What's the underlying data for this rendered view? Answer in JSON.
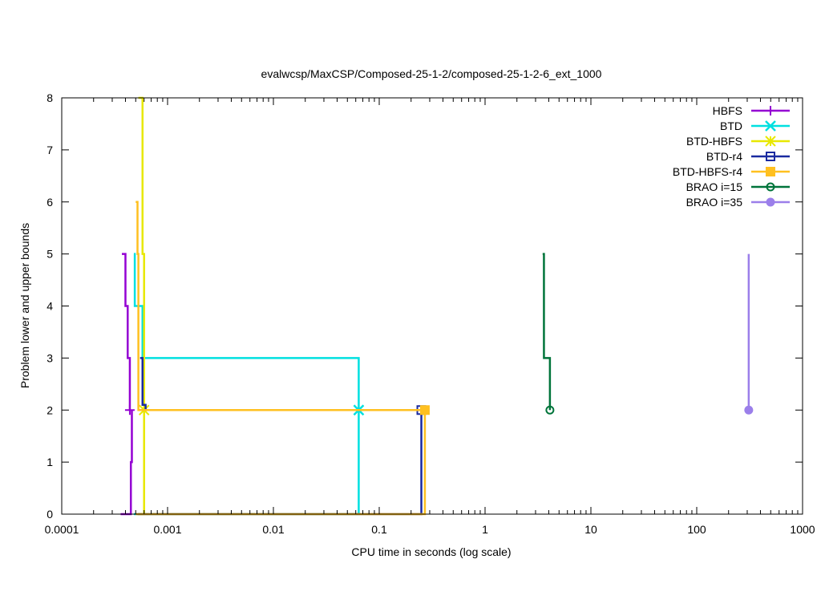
{
  "chart_data": {
    "type": "line",
    "title": "evalwcsp/MaxCSP/Composed-25-1-2/composed-25-1-2-6_ext_1000",
    "xlabel": "CPU time in seconds (log scale)",
    "ylabel": "Problem lower and upper bounds",
    "xscale": "log",
    "xlim": [
      0.0001,
      1000
    ],
    "ylim": [
      0,
      8
    ],
    "xticks": [
      {
        "value": 0.0001,
        "label": "0.0001"
      },
      {
        "value": 0.001,
        "label": "0.001"
      },
      {
        "value": 0.01,
        "label": "0.01"
      },
      {
        "value": 0.1,
        "label": "0.1"
      },
      {
        "value": 1,
        "label": "1"
      },
      {
        "value": 10,
        "label": "10"
      },
      {
        "value": 100,
        "label": "100"
      },
      {
        "value": 1000,
        "label": "1000"
      }
    ],
    "yticks": [
      {
        "value": 0,
        "label": "0"
      },
      {
        "value": 1,
        "label": "1"
      },
      {
        "value": 2,
        "label": "2"
      },
      {
        "value": 3,
        "label": "3"
      },
      {
        "value": 4,
        "label": "4"
      },
      {
        "value": 5,
        "label": "5"
      },
      {
        "value": 6,
        "label": "6"
      },
      {
        "value": 7,
        "label": "7"
      },
      {
        "value": 8,
        "label": "8"
      }
    ],
    "grid": false,
    "legend_position": "top-right",
    "series": [
      {
        "name": "HBFS",
        "color": "#9400d3",
        "marker": "plus",
        "upper": [
          [
            0.00037,
            5
          ],
          [
            0.0004,
            4
          ],
          [
            0.00042,
            3
          ],
          [
            0.00044,
            2
          ]
        ],
        "lower": [
          [
            0.00036,
            0
          ],
          [
            0.00045,
            1
          ],
          [
            0.00046,
            2
          ]
        ],
        "final": [
          0.00044,
          2
        ]
      },
      {
        "name": "BTD",
        "color": "#00e0e0",
        "marker": "x",
        "upper": [
          [
            0.00048,
            5
          ],
          [
            0.00049,
            4
          ],
          [
            0.00058,
            3
          ],
          [
            0.064,
            2
          ]
        ],
        "lower": [
          [
            0.00048,
            0
          ],
          [
            0.064,
            2
          ]
        ],
        "final": [
          0.064,
          2
        ]
      },
      {
        "name": "BTD-HBFS",
        "color": "#e8e800",
        "marker": "star",
        "upper": [
          [
            0.00053,
            8
          ],
          [
            0.00058,
            5
          ],
          [
            0.0006,
            2
          ]
        ],
        "lower": [
          [
            0.00053,
            0
          ],
          [
            0.0006,
            2
          ]
        ],
        "final": [
          0.0006,
          2
        ]
      },
      {
        "name": "BTD-r4",
        "color": "#1a2aa0",
        "marker": "square",
        "upper": [
          [
            0.00055,
            3
          ],
          [
            0.00058,
            2.1
          ],
          [
            0.00062,
            2
          ],
          [
            0.25,
            2
          ]
        ],
        "lower": [
          [
            0.00052,
            0
          ],
          [
            0.25,
            2
          ]
        ],
        "final": [
          0.25,
          2
        ]
      },
      {
        "name": "BTD-HBFS-r4",
        "color": "#ffc020",
        "marker": "filled-square",
        "upper": [
          [
            0.0005,
            6
          ],
          [
            0.00052,
            5
          ],
          [
            0.00053,
            2
          ],
          [
            0.27,
            2
          ]
        ],
        "lower": [
          [
            0.0005,
            0
          ],
          [
            0.27,
            2
          ]
        ],
        "final": [
          0.27,
          2
        ]
      },
      {
        "name": "BRAO i=15",
        "color": "#00743a",
        "marker": "circle",
        "upper": [
          [
            3.5,
            5
          ],
          [
            3.6,
            3
          ],
          [
            4.1,
            2
          ]
        ],
        "lower": [
          [
            4.1,
            2
          ]
        ],
        "final": [
          4.1,
          2
        ]
      },
      {
        "name": "BRAO i=35",
        "color": "#9b7fea",
        "marker": "filled-circle",
        "upper": [
          [
            310,
            5
          ],
          [
            310,
            2
          ]
        ],
        "lower": [
          [
            310,
            2
          ]
        ],
        "final": [
          310,
          2
        ]
      }
    ]
  }
}
